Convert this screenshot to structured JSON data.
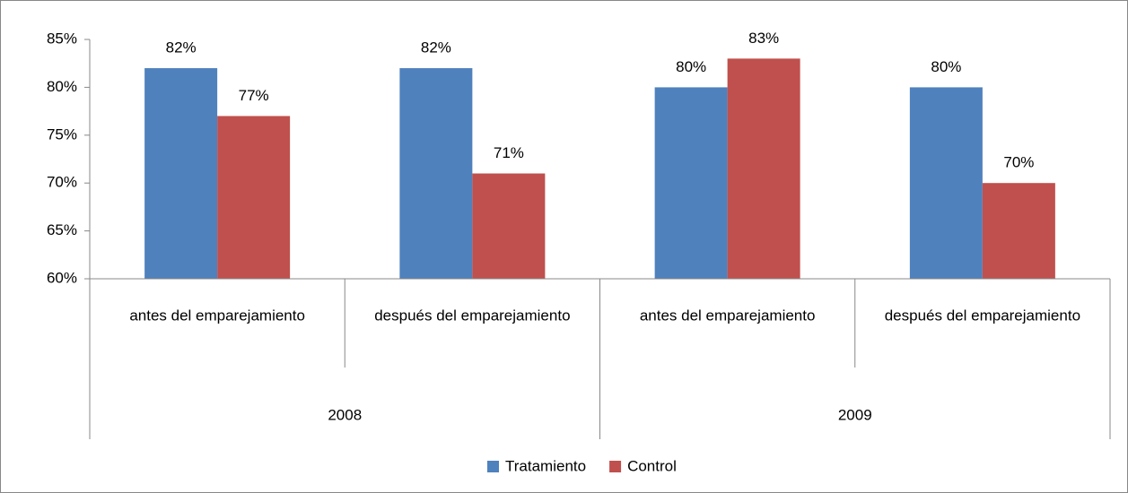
{
  "chart_data": {
    "type": "bar",
    "categories": [
      "antes del emparejamiento",
      "después del emparejamiento",
      "antes del emparejamiento",
      "después del emparejamiento"
    ],
    "groups": [
      {
        "name": "2008",
        "span": 2
      },
      {
        "name": "2009",
        "span": 2
      }
    ],
    "series": [
      {
        "name": "Tratamiento",
        "color": "#4f81bd",
        "values": [
          82,
          82,
          80,
          80
        ],
        "value_labels": [
          "82%",
          "82%",
          "80%",
          "80%"
        ]
      },
      {
        "name": "Control",
        "color": "#c0504d",
        "values": [
          77,
          71,
          83,
          70
        ],
        "value_labels": [
          "77%",
          "71%",
          "83%",
          "70%"
        ]
      }
    ],
    "ylim": [
      60,
      85
    ],
    "yticks": [
      {
        "value": 60,
        "label": "60%"
      },
      {
        "value": 65,
        "label": "65%"
      },
      {
        "value": 70,
        "label": "70%"
      },
      {
        "value": 75,
        "label": "75%"
      },
      {
        "value": 80,
        "label": "80%"
      },
      {
        "value": 85,
        "label": "85%"
      }
    ],
    "legend": "bottom"
  }
}
